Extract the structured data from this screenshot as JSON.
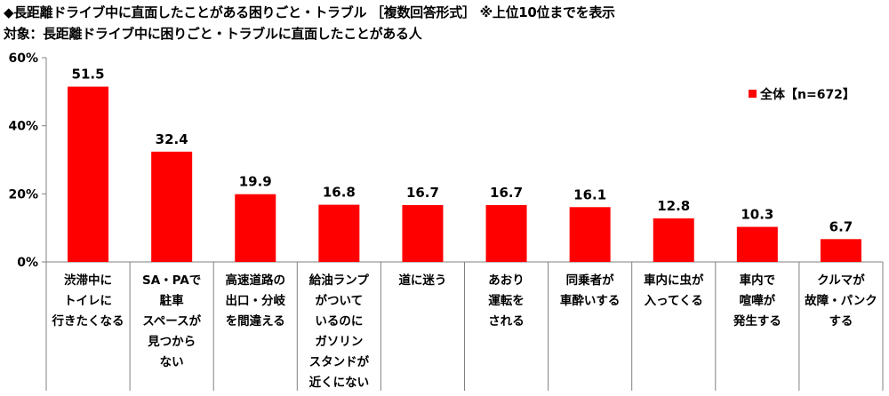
{
  "header": {
    "title": "◆長距離ドライブ中に直面したことがある困りごと・トラブル ［複数回答形式］ ※上位10位までを表示",
    "subtitle": "対象：長距離ドライブ中に困りごと・トラブルに直面したことがある人"
  },
  "chart_data": {
    "type": "bar",
    "categories": [
      [
        "渋滞中に",
        "トイレに",
        "行きたくなる"
      ],
      [
        "SA・PAで",
        "駐車",
        "スペースが",
        "見つから",
        "ない"
      ],
      [
        "高速道路の",
        "出口・分岐",
        "を間違える"
      ],
      [
        "給油ランプ",
        "がついて",
        "いるのに",
        "ガソリン",
        "スタンドが",
        "近くにない"
      ],
      [
        "道に迷う"
      ],
      [
        "あおり",
        "運転を",
        "される"
      ],
      [
        "同乗者が",
        "車酔いする"
      ],
      [
        "車内に虫が",
        "入ってくる"
      ],
      [
        "車内で",
        "喧嘩が",
        "発生する"
      ],
      [
        "クルマが",
        "故障・パンク",
        "する"
      ]
    ],
    "series": [
      {
        "name": "全体【n=672】",
        "values": [
          51.5,
          32.4,
          19.9,
          16.8,
          16.7,
          16.7,
          16.1,
          12.8,
          10.3,
          6.7
        ],
        "labels": [
          "51.5",
          "32.4",
          "19.9",
          "16.8",
          "16.7",
          "16.7",
          "16.1",
          "12.8",
          "10.3",
          "6.7"
        ]
      }
    ],
    "ylim": [
      0,
      60
    ],
    "yticks": [
      0,
      20,
      40,
      60
    ],
    "ytick_labels": [
      "0%",
      "20%",
      "40%",
      "60%"
    ],
    "bar_color": "#ff0000",
    "legend_position": "top-right",
    "grid": false
  }
}
